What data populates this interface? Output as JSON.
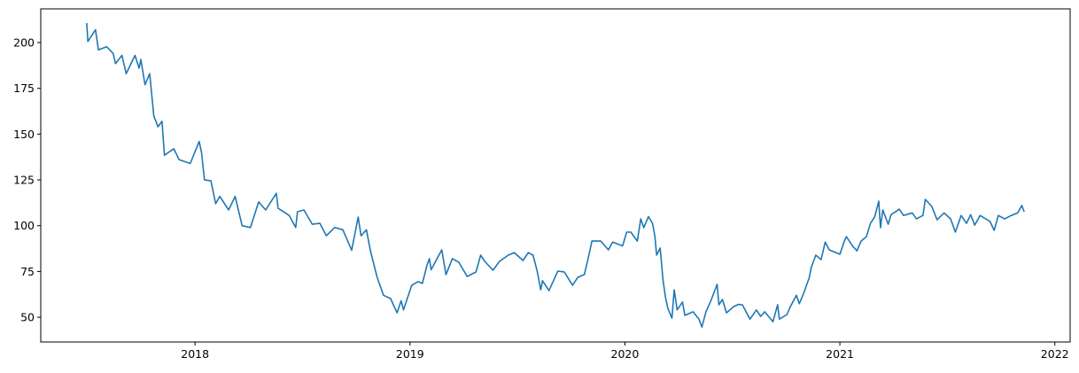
{
  "chart_data": {
    "type": "line",
    "title": "",
    "xlabel": "",
    "ylabel": "",
    "xlim": [
      "2017-04-14",
      "2022-01-27"
    ],
    "ylim": [
      36.5,
      218.4
    ],
    "x_ticks": [
      "2018",
      "2019",
      "2020",
      "2021",
      "2022"
    ],
    "y_ticks": [
      50,
      75,
      100,
      125,
      150,
      175,
      200
    ],
    "grid": false,
    "line_color": "#1f77b4",
    "series": [
      {
        "points": [
          [
            "2017-07-01",
            210.6
          ],
          [
            "2017-07-03",
            200.6
          ],
          [
            "2017-07-16",
            207
          ],
          [
            "2017-07-21",
            196
          ],
          [
            "2017-08-04",
            197.7
          ],
          [
            "2017-08-15",
            194
          ],
          [
            "2017-08-19",
            188.5
          ],
          [
            "2017-08-30",
            193
          ],
          [
            "2017-09-06",
            183
          ],
          [
            "2017-09-21",
            193
          ],
          [
            "2017-09-28",
            186
          ],
          [
            "2017-10-01",
            190.8
          ],
          [
            "2017-10-08",
            177
          ],
          [
            "2017-10-16",
            183
          ],
          [
            "2017-10-23",
            160
          ],
          [
            "2017-10-30",
            154
          ],
          [
            "2017-11-06",
            157
          ],
          [
            "2017-11-10",
            138.5
          ],
          [
            "2017-11-26",
            142
          ],
          [
            "2017-12-05",
            136
          ],
          [
            "2017-12-24",
            134
          ],
          [
            "2018-01-08",
            146
          ],
          [
            "2018-01-12",
            140
          ],
          [
            "2018-01-17",
            125
          ],
          [
            "2018-01-28",
            124.5
          ],
          [
            "2018-02-05",
            112
          ],
          [
            "2018-02-12",
            116
          ],
          [
            "2018-02-27",
            108.6
          ],
          [
            "2018-03-10",
            116
          ],
          [
            "2018-03-22",
            100
          ],
          [
            "2018-04-05",
            99
          ],
          [
            "2018-04-19",
            113
          ],
          [
            "2018-05-01",
            108.6
          ],
          [
            "2018-05-19",
            117.7
          ],
          [
            "2018-05-22",
            109.5
          ],
          [
            "2018-06-10",
            105.6
          ],
          [
            "2018-06-21",
            99
          ],
          [
            "2018-06-24",
            107.6
          ],
          [
            "2018-07-05",
            108.6
          ],
          [
            "2018-07-19",
            100.8
          ],
          [
            "2018-08-01",
            101.3
          ],
          [
            "2018-08-12",
            94.5
          ],
          [
            "2018-08-26",
            99
          ],
          [
            "2018-09-09",
            97.8
          ],
          [
            "2018-09-24",
            86.6
          ],
          [
            "2018-10-05",
            104.7
          ],
          [
            "2018-10-10",
            94.5
          ],
          [
            "2018-10-19",
            97.8
          ],
          [
            "2018-10-26",
            86
          ],
          [
            "2018-11-06",
            72
          ],
          [
            "2018-11-17",
            62
          ],
          [
            "2018-11-29",
            60.2
          ],
          [
            "2018-12-10",
            52.4
          ],
          [
            "2018-12-17",
            59
          ],
          [
            "2018-12-21",
            54
          ],
          [
            "2019-01-04",
            67.5
          ],
          [
            "2019-01-15",
            69.5
          ],
          [
            "2019-01-22",
            68.5
          ],
          [
            "2019-01-30",
            78.6
          ],
          [
            "2019-02-03",
            82
          ],
          [
            "2019-02-06",
            76
          ],
          [
            "2019-02-24",
            86.8
          ],
          [
            "2019-03-03",
            73.3
          ],
          [
            "2019-03-14",
            82
          ],
          [
            "2019-03-25",
            80
          ],
          [
            "2019-04-08",
            72.3
          ],
          [
            "2019-04-23",
            74.7
          ],
          [
            "2019-05-01",
            83.9
          ],
          [
            "2019-05-08",
            80.5
          ],
          [
            "2019-05-22",
            75.7
          ],
          [
            "2019-06-02",
            80.5
          ],
          [
            "2019-06-17",
            83.9
          ],
          [
            "2019-06-27",
            85.3
          ],
          [
            "2019-07-12",
            81
          ],
          [
            "2019-07-21",
            85.3
          ],
          [
            "2019-07-29",
            83.9
          ],
          [
            "2019-08-05",
            75.2
          ],
          [
            "2019-08-11",
            65
          ],
          [
            "2019-08-14",
            70
          ],
          [
            "2019-08-25",
            64.5
          ],
          [
            "2019-09-09",
            75.2
          ],
          [
            "2019-09-20",
            74.7
          ],
          [
            "2019-10-04",
            67.5
          ],
          [
            "2019-10-13",
            71.8
          ],
          [
            "2019-10-24",
            73.3
          ],
          [
            "2019-10-30",
            81.5
          ],
          [
            "2019-11-06",
            91.6
          ],
          [
            "2019-11-21",
            91.6
          ],
          [
            "2019-12-04",
            86.8
          ],
          [
            "2019-12-11",
            91
          ],
          [
            "2019-12-28",
            89
          ],
          [
            "2020-01-04",
            96.5
          ],
          [
            "2020-01-11",
            96.5
          ],
          [
            "2020-01-22",
            91.6
          ],
          [
            "2020-01-28",
            103.7
          ],
          [
            "2020-02-02",
            98.9
          ],
          [
            "2020-02-10",
            105
          ],
          [
            "2020-02-17",
            101.3
          ],
          [
            "2020-02-21",
            94
          ],
          [
            "2020-02-24",
            83.9
          ],
          [
            "2020-03-01",
            87.8
          ],
          [
            "2020-03-06",
            70
          ],
          [
            "2020-03-10",
            61
          ],
          [
            "2020-03-14",
            55
          ],
          [
            "2020-03-21",
            49.5
          ],
          [
            "2020-03-25",
            65
          ],
          [
            "2020-03-30",
            54
          ],
          [
            "2020-04-08",
            58.3
          ],
          [
            "2020-04-12",
            51
          ],
          [
            "2020-04-26",
            53
          ],
          [
            "2020-05-06",
            49
          ],
          [
            "2020-05-11",
            44.7
          ],
          [
            "2020-05-18",
            53
          ],
          [
            "2020-05-26",
            58.7
          ],
          [
            "2020-06-06",
            68
          ],
          [
            "2020-06-09",
            56.8
          ],
          [
            "2020-06-15",
            59.7
          ],
          [
            "2020-06-22",
            52.4
          ],
          [
            "2020-07-04",
            55.8
          ],
          [
            "2020-07-12",
            57
          ],
          [
            "2020-07-19",
            56.8
          ],
          [
            "2020-08-01",
            49
          ],
          [
            "2020-08-12",
            54
          ],
          [
            "2020-08-19",
            50.5
          ],
          [
            "2020-08-26",
            53
          ],
          [
            "2020-09-09",
            47.6
          ],
          [
            "2020-09-17",
            56.8
          ],
          [
            "2020-09-20",
            49
          ],
          [
            "2020-10-03",
            51.5
          ],
          [
            "2020-10-08",
            55.3
          ],
          [
            "2020-10-19",
            62
          ],
          [
            "2020-10-24",
            57.4
          ],
          [
            "2020-11-01",
            63.6
          ],
          [
            "2020-11-10",
            71.8
          ],
          [
            "2020-11-13",
            77
          ],
          [
            "2020-11-21",
            83.9
          ],
          [
            "2020-11-30",
            81.5
          ],
          [
            "2020-12-07",
            91
          ],
          [
            "2020-12-14",
            86.8
          ],
          [
            "2021-01-01",
            84.4
          ],
          [
            "2021-01-08",
            91
          ],
          [
            "2021-01-12",
            94
          ],
          [
            "2021-01-23",
            88.7
          ],
          [
            "2021-01-30",
            86.3
          ],
          [
            "2021-02-06",
            91.6
          ],
          [
            "2021-02-15",
            94
          ],
          [
            "2021-02-22",
            101.3
          ],
          [
            "2021-03-01",
            104.7
          ],
          [
            "2021-03-08",
            113.4
          ],
          [
            "2021-03-11",
            98.9
          ],
          [
            "2021-03-15",
            108.6
          ],
          [
            "2021-03-24",
            100.8
          ],
          [
            "2021-03-29",
            106
          ],
          [
            "2021-04-12",
            109
          ],
          [
            "2021-04-19",
            105.6
          ],
          [
            "2021-05-04",
            107
          ],
          [
            "2021-05-11",
            103.7
          ],
          [
            "2021-05-22",
            105.6
          ],
          [
            "2021-05-26",
            114.4
          ],
          [
            "2021-06-06",
            110.5
          ],
          [
            "2021-06-15",
            103.2
          ],
          [
            "2021-06-27",
            107
          ],
          [
            "2021-07-08",
            103.7
          ],
          [
            "2021-07-16",
            96.5
          ],
          [
            "2021-07-26",
            105.6
          ],
          [
            "2021-08-04",
            101.3
          ],
          [
            "2021-08-11",
            106
          ],
          [
            "2021-08-18",
            100.3
          ],
          [
            "2021-08-27",
            105.6
          ],
          [
            "2021-09-13",
            102.3
          ],
          [
            "2021-09-20",
            97.4
          ],
          [
            "2021-09-27",
            105.6
          ],
          [
            "2021-10-08",
            103.7
          ],
          [
            "2021-10-19",
            105.6
          ],
          [
            "2021-10-30",
            107
          ],
          [
            "2021-11-06",
            111
          ],
          [
            "2021-11-10",
            107.6
          ]
        ]
      }
    ]
  }
}
